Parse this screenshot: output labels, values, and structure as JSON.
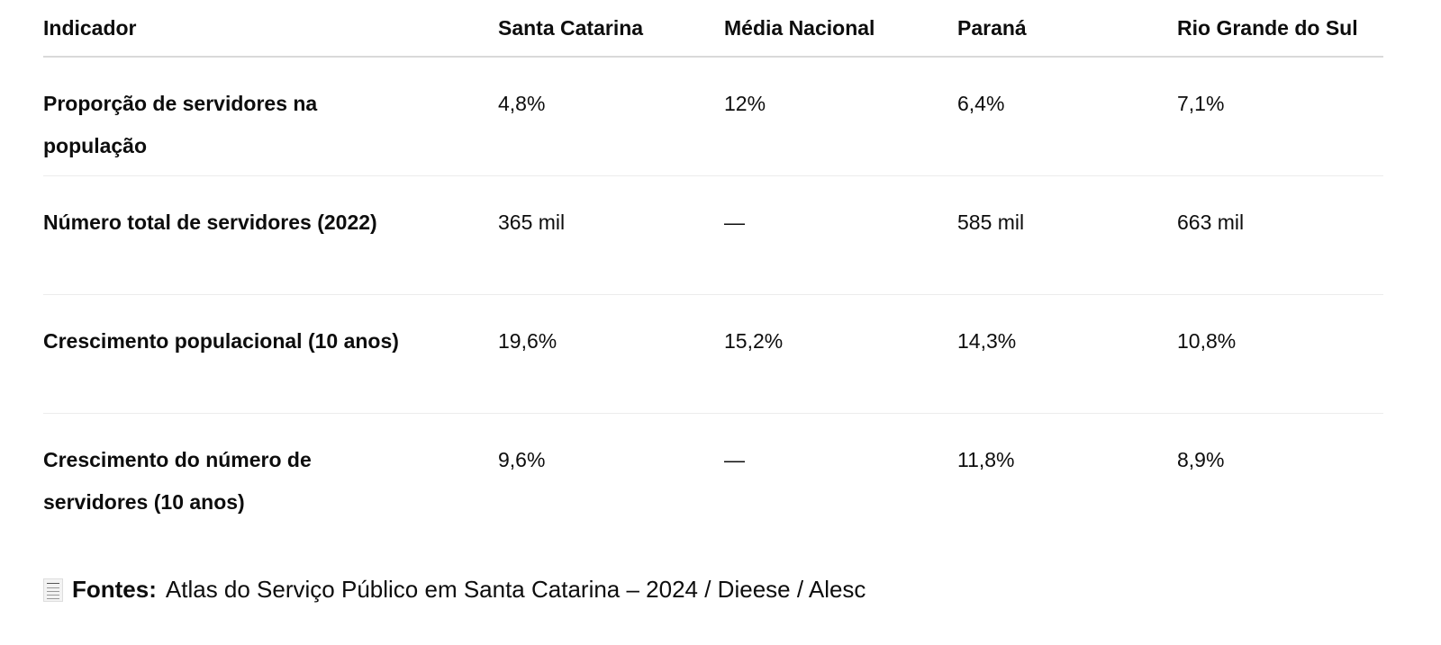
{
  "table": {
    "headers": [
      "Indicador",
      "Santa Catarina",
      "Média Nacional",
      "Paraná",
      "Rio Grande do Sul"
    ],
    "rows": [
      [
        "Proporção de servidores na população",
        "4,8%",
        "12%",
        "6,4%",
        "7,1%"
      ],
      [
        "Número total de servidores (2022)",
        "365 mil",
        "—",
        "585 mil",
        "663 mil"
      ],
      [
        "Crescimento populacional (10 anos)",
        "19,6%",
        "15,2%",
        "14,3%",
        "10,8%"
      ],
      [
        "Crescimento do número de servidores (10 anos)",
        "9,6%",
        "—",
        "11,8%",
        "8,9%"
      ]
    ]
  },
  "footer": {
    "icon": "receipt-icon",
    "label": "Fontes:",
    "text": "Atlas do Serviço Público em Santa Catarina – 2024 / Dieese / Alesc"
  }
}
